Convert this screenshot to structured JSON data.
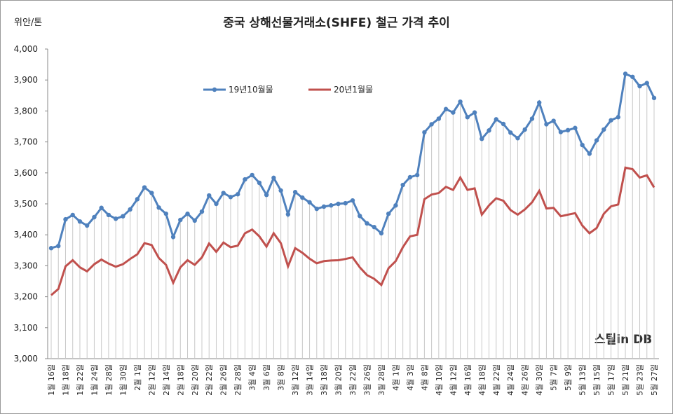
{
  "chart_data": {
    "type": "line",
    "title": "중국 상해선물거래소(SHFE) 철근 가격 추이",
    "y_label": "위안/톤",
    "watermark": "스틸in DB",
    "categories": [
      "1월 16일",
      null,
      "1월 18일",
      null,
      "1월 22일",
      null,
      "1월 24일",
      null,
      "1월 28일",
      null,
      "1월 30일",
      null,
      "2월 1일",
      null,
      "2월 12일",
      null,
      "2월 14일",
      null,
      "2월 18일",
      null,
      "2월 20일",
      null,
      "2월 22일",
      null,
      "2월 26일",
      null,
      "2월 28일",
      null,
      "3월 4일",
      null,
      "3월 6일",
      null,
      "3월 8일",
      null,
      "3월 12일",
      null,
      "3월 14일",
      null,
      "3월 18일",
      null,
      "3월 20일",
      null,
      "3월 22일",
      null,
      "3월 26일",
      null,
      "3월 28일",
      null,
      "4월 1일",
      null,
      "4월 3일",
      null,
      "4월 8일",
      null,
      "4월 10일",
      null,
      "4월 12일",
      null,
      "4월 16일",
      null,
      "4월 18일",
      null,
      "4월 22일",
      null,
      "4월 24일",
      null,
      "4월 26일",
      null,
      "4월 30일",
      null,
      "5월 7일",
      null,
      "5월 9일",
      null,
      "5월 13일",
      null,
      "5월 15일",
      null,
      "5월 17일",
      null,
      "5월 21일",
      null,
      "5월 23일",
      null,
      "5월 27일"
    ],
    "series": [
      {
        "name": "19년10월물",
        "color": "#4f81bd",
        "values": [
          3357,
          3364,
          3450,
          3464,
          3443,
          3430,
          3457,
          3487,
          3464,
          3452,
          3460,
          3482,
          3515,
          3553,
          3535,
          3488,
          3468,
          3393,
          3448,
          3468,
          3446,
          3475,
          3527,
          3500,
          3535,
          3522,
          3531,
          3579,
          3593,
          3568,
          3529,
          3584,
          3543,
          3466,
          3538,
          3520,
          3505,
          3484,
          3491,
          3495,
          3500,
          3502,
          3511,
          3461,
          3437,
          3425,
          3405,
          3468,
          3495,
          3561,
          3586,
          3593,
          3731,
          3757,
          3775,
          3806,
          3795,
          3830,
          3780,
          3795,
          3710,
          3737,
          3773,
          3758,
          3730,
          3712,
          3740,
          3775,
          3827,
          3757,
          3768,
          3732,
          3738,
          3745,
          3690,
          3662,
          3705,
          3740,
          3770,
          3780,
          3920,
          3910,
          3880,
          3890,
          3842
        ]
      },
      {
        "name": "20년1월물",
        "color": "#c0504d",
        "values": [
          3205,
          3225,
          3298,
          3318,
          3295,
          3282,
          3305,
          3320,
          3307,
          3297,
          3305,
          3322,
          3337,
          3373,
          3367,
          3325,
          3303,
          3245,
          3295,
          3318,
          3303,
          3327,
          3372,
          3345,
          3375,
          3360,
          3365,
          3405,
          3417,
          3395,
          3362,
          3405,
          3373,
          3298,
          3357,
          3342,
          3323,
          3308,
          3315,
          3317,
          3318,
          3322,
          3327,
          3295,
          3270,
          3258,
          3238,
          3292,
          3315,
          3360,
          3395,
          3400,
          3515,
          3530,
          3535,
          3555,
          3545,
          3585,
          3545,
          3550,
          3465,
          3495,
          3518,
          3510,
          3480,
          3465,
          3482,
          3505,
          3542,
          3485,
          3487,
          3460,
          3465,
          3470,
          3430,
          3405,
          3422,
          3468,
          3492,
          3498,
          3617,
          3612,
          3585,
          3592,
          3553
        ]
      }
    ],
    "ylim": [
      3000,
      4000
    ],
    "yticks": [
      {
        "value": 3000,
        "label": "3,000"
      },
      {
        "value": 3100,
        "label": "3,100"
      },
      {
        "value": 3200,
        "label": "3,200"
      },
      {
        "value": 3300,
        "label": "3,300"
      },
      {
        "value": 3400,
        "label": "3,400"
      },
      {
        "value": 3500,
        "label": "3,500"
      },
      {
        "value": 3600,
        "label": "3,600"
      },
      {
        "value": 3700,
        "label": "3,700"
      },
      {
        "value": 3800,
        "label": "3,800"
      },
      {
        "value": 3900,
        "label": "3,900"
      },
      {
        "value": 4000,
        "label": "4,000"
      }
    ],
    "grid": false
  }
}
